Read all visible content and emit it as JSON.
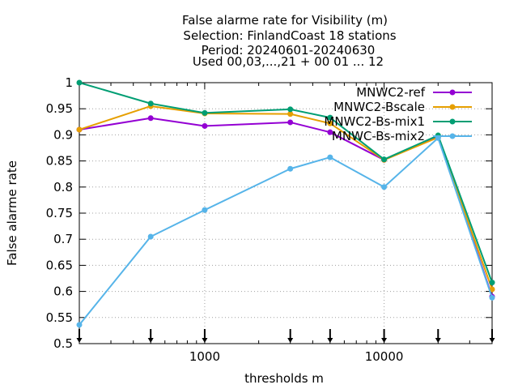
{
  "chart_data": {
    "type": "line",
    "title_lines": [
      "False alarme rate  for Visibility (m)",
      "Selection: FinlandCoast      18 stations",
      "Period: 20240601-20240630",
      "Used 00,03,...,21 + 00 01 ... 12"
    ],
    "xlabel": "thresholds m",
    "ylabel": "False alarme rate",
    "x_scale": "log",
    "xlim": [
      200,
      40000
    ],
    "ylim": [
      0.5,
      1.0
    ],
    "x_tick_labels": [
      "1000",
      "10000"
    ],
    "y_tick_labels": [
      "0.5",
      "0.55",
      "0.6",
      "0.65",
      "0.7",
      "0.75",
      "0.8",
      "0.85",
      "0.9",
      "0.95",
      "1"
    ],
    "grid": true,
    "legend_position": "top-right",
    "x": [
      200,
      500,
      1000,
      3000,
      5000,
      10000,
      20000,
      40000
    ],
    "series": [
      {
        "name": "MNWC2-ref",
        "color": "#9400d3",
        "values": [
          0.91,
          0.932,
          0.917,
          0.924,
          0.905,
          0.852,
          0.897,
          0.59
        ]
      },
      {
        "name": "MNWC2-Bscale",
        "color": "#e69f00",
        "values": [
          0.91,
          0.955,
          0.941,
          0.94,
          0.922,
          0.852,
          0.895,
          0.604
        ]
      },
      {
        "name": "MNWC2-Bs-mix1",
        "color": "#009e73",
        "values": [
          1.0,
          0.96,
          0.942,
          0.949,
          0.933,
          0.853,
          0.899,
          0.617
        ]
      },
      {
        "name": "MNWC-Bs-mix2",
        "color": "#56b4e9",
        "values": [
          0.536,
          0.705,
          0.756,
          0.835,
          0.857,
          0.8,
          0.894,
          0.588
        ]
      }
    ]
  }
}
